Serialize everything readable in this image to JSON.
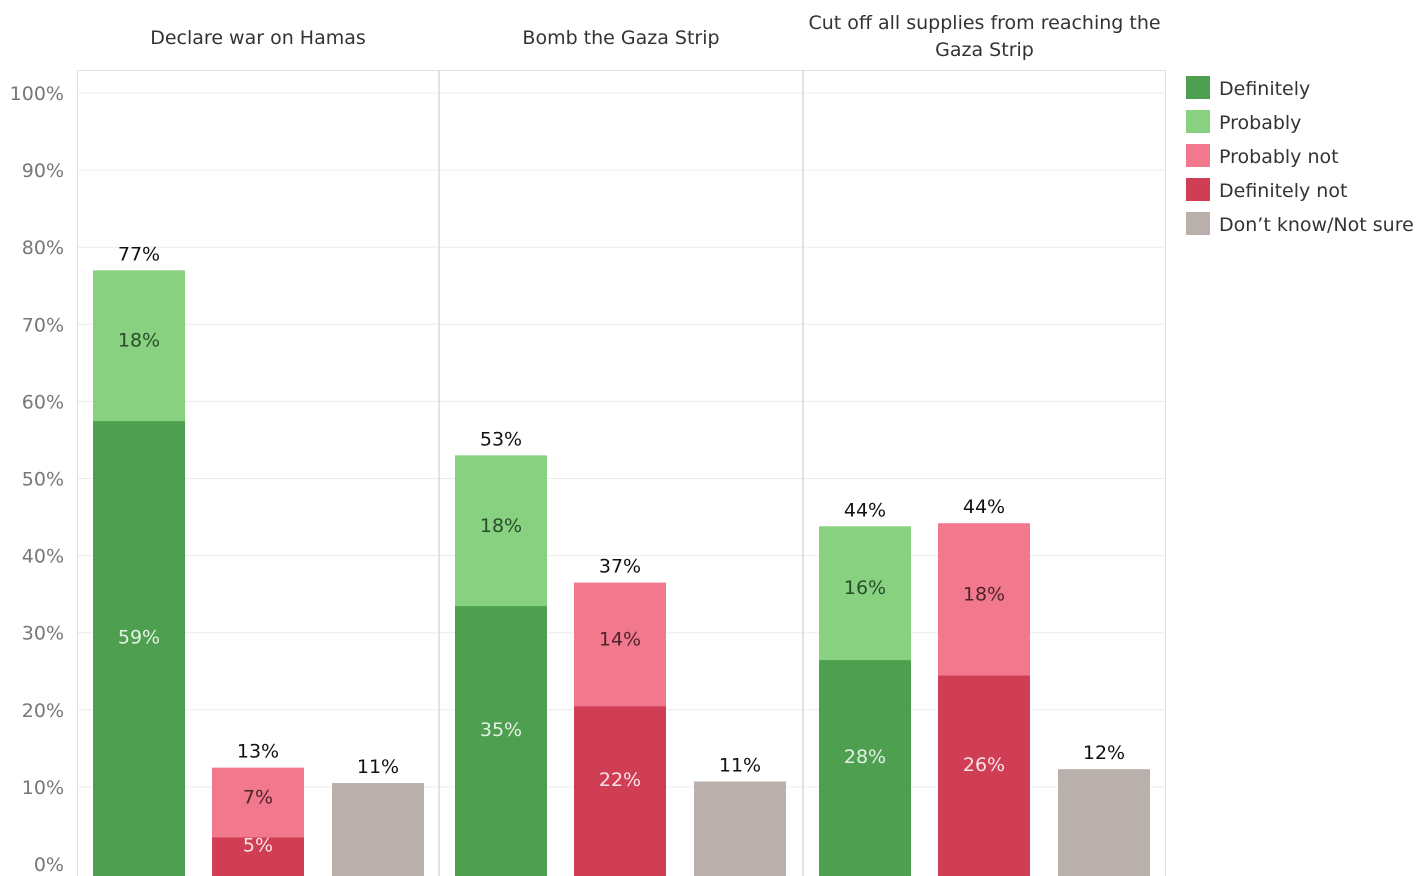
{
  "chart_data": {
    "type": "bar",
    "stacked": true,
    "y_ticks": [
      "0%",
      "10%",
      "20%",
      "30%",
      "40%",
      "50%",
      "60%",
      "70%",
      "80%",
      "90%",
      "100%"
    ],
    "ylim": [
      0,
      100
    ],
    "grid": true,
    "legend_position": "right",
    "legend": [
      {
        "key": "definitely",
        "label": "Definitely",
        "color": "#4e9f50"
      },
      {
        "key": "probably",
        "label": "Probably",
        "color": "#87d180"
      },
      {
        "key": "probably_not",
        "label": "Probably not",
        "color": "#f1788d"
      },
      {
        "key": "definitely_not",
        "label": "Definitely not",
        "color": "#d03e56"
      },
      {
        "key": "dont_know",
        "label": "Don’t know/Not sure",
        "color": "#b9b0ab"
      }
    ],
    "panels": [
      {
        "title_lines": [
          "Declare war on Hamas"
        ],
        "bars": [
          {
            "total": 77,
            "total_label": "77%",
            "segments": [
              {
                "key": "definitely",
                "value": 59,
                "label": "59%"
              },
              {
                "key": "probably",
                "value": 18,
                "label": "18%"
              }
            ]
          },
          {
            "total": 12.5,
            "total_label": "13%",
            "segments": [
              {
                "key": "definitely_not",
                "value": 5,
                "label": "5%"
              },
              {
                "key": "probably_not",
                "value": 7.5,
                "label": "7%"
              }
            ]
          },
          {
            "total": 10.5,
            "total_label": "11%",
            "segments": [
              {
                "key": "dont_know",
                "value": 10.5,
                "label": ""
              }
            ]
          }
        ]
      },
      {
        "title_lines": [
          "Bomb the Gaza Strip"
        ],
        "bars": [
          {
            "total": 53,
            "total_label": "53%",
            "segments": [
              {
                "key": "definitely",
                "value": 35,
                "label": "35%"
              },
              {
                "key": "probably",
                "value": 18,
                "label": "18%"
              }
            ]
          },
          {
            "total": 36.5,
            "total_label": "37%",
            "segments": [
              {
                "key": "definitely_not",
                "value": 22,
                "label": "22%"
              },
              {
                "key": "probably_not",
                "value": 14.5,
                "label": "14%"
              }
            ]
          },
          {
            "total": 10.7,
            "total_label": "11%",
            "segments": [
              {
                "key": "dont_know",
                "value": 10.7,
                "label": ""
              }
            ]
          }
        ]
      },
      {
        "title_lines": [
          "Cut off all supplies from reaching the",
          "Gaza Strip"
        ],
        "bars": [
          {
            "total": 43.8,
            "total_label": "44%",
            "segments": [
              {
                "key": "definitely",
                "value": 28,
                "label": "28%"
              },
              {
                "key": "probably",
                "value": 15.8,
                "label": "16%"
              }
            ]
          },
          {
            "total": 44.2,
            "total_label": "44%",
            "segments": [
              {
                "key": "definitely_not",
                "value": 26,
                "label": "26%"
              },
              {
                "key": "probably_not",
                "value": 18.2,
                "label": "18%"
              }
            ]
          },
          {
            "total": 12.3,
            "total_label": "12%",
            "segments": [
              {
                "key": "dont_know",
                "value": 12.3,
                "label": ""
              }
            ]
          }
        ]
      }
    ]
  }
}
